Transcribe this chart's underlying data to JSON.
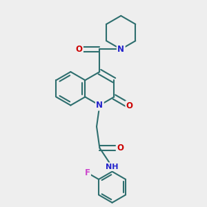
{
  "bg_color": "#eeeeee",
  "bond_color": "#2d6e6e",
  "bond_width": 1.5,
  "atom_colors": {
    "N": "#2222cc",
    "O": "#cc0000",
    "F": "#cc44cc",
    "H": "#777777"
  },
  "font_size": 8.5,
  "xlim": [
    -1.6,
    1.6
  ],
  "ylim": [
    -1.8,
    1.6
  ]
}
